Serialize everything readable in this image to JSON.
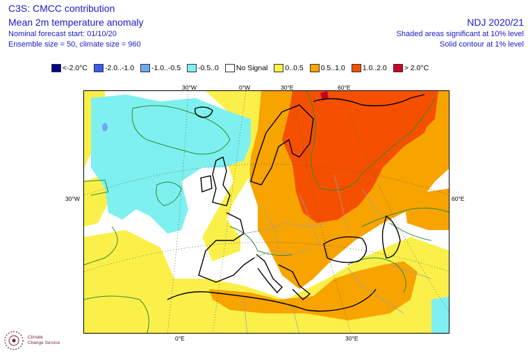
{
  "header": {
    "title_left": "C3S: CMCC contribution",
    "subtitle_left": "Mean 2m temperature anomaly",
    "forecast_start": "Nominal forecast start: 01/10/20",
    "ensemble": "Ensemble size = 50, climate size = 960",
    "period": "NDJ 2020/21",
    "significance_shaded": "Shaded areas significant at 10% level",
    "significance_contour": "Solid contour at 1% level"
  },
  "legend": [
    {
      "label": "<-2.0°C",
      "color": "#00008b"
    },
    {
      "label": "-2.0..-1.0",
      "color": "#3a5cf0"
    },
    {
      "label": "-1.0..-0.5",
      "color": "#6fa8f0"
    },
    {
      "label": "-0.5..0",
      "color": "#7ff0f0"
    },
    {
      "label": "No Signal",
      "color": "#ffffff"
    },
    {
      "label": "0..0.5",
      "color": "#fbf04a"
    },
    {
      "label": "0.5..1.0",
      "color": "#f7a300"
    },
    {
      "label": "1.0..2.0",
      "color": "#f55000"
    },
    {
      "label": "> 2.0°C",
      "color": "#c8002a"
    }
  ],
  "axes": {
    "top": [
      "30°W",
      "0°W",
      "30°E",
      "60°E"
    ],
    "bottom": [
      "0°E",
      "30°E"
    ],
    "left": "30°W",
    "right": "60°E"
  },
  "logo": {
    "icon": "copernicus-climate-icon",
    "line1": "Climate",
    "line2": "Change Service"
  },
  "colors": {
    "title_text": "#1a1acc",
    "contour": "#2e8b2e",
    "coast": "#000000",
    "border": "#a0a0a0"
  }
}
